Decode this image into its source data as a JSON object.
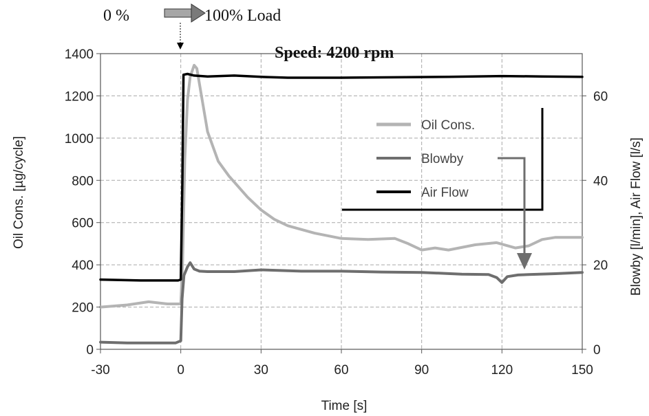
{
  "chart_data": {
    "type": "line",
    "annotations": {
      "load_start": "0 %",
      "load_end": "100% Load",
      "speed": "Speed: 4200 rpm"
    },
    "xlabel": "Time [s]",
    "ylabel_left": "Oil Cons. [µg/cycle]",
    "ylabel_right": "Blowby [l/min], Air Flow [l/s]",
    "xlim": [
      -30,
      150
    ],
    "ylim_left": [
      0,
      1400
    ],
    "ylim_right": [
      0,
      70
    ],
    "x_ticks": [
      "-30",
      "0",
      "30",
      "60",
      "90",
      "120",
      "150"
    ],
    "y_left_ticks": [
      "0",
      "200",
      "400",
      "600",
      "800",
      "1000",
      "1200",
      "1400"
    ],
    "y_right_ticks": [
      "0",
      "20",
      "40",
      "60"
    ],
    "grid": true,
    "legend_position": "upper-right",
    "series": [
      {
        "name": "Oil Cons.",
        "axis": "left",
        "color": "#b4b4b4",
        "x": [
          -30,
          -20,
          -12,
          -5,
          0,
          0.7,
          1.5,
          2.5,
          3.5,
          5,
          6,
          8,
          10,
          14,
          18,
          25,
          30,
          35,
          40,
          50,
          60,
          70,
          80,
          85,
          90,
          95,
          100,
          110,
          118,
          125,
          130,
          135,
          140,
          145,
          150
        ],
        "y": [
          200,
          210,
          225,
          215,
          215,
          420,
          900,
          1180,
          1290,
          1345,
          1330,
          1180,
          1030,
          890,
          820,
          720,
          660,
          615,
          585,
          550,
          525,
          520,
          525,
          500,
          470,
          480,
          470,
          495,
          505,
          480,
          490,
          520,
          530,
          530,
          530
        ]
      },
      {
        "name": "Blowby",
        "axis": "right",
        "color": "#6e6e6e",
        "x": [
          -30,
          -20,
          -10,
          -2,
          0,
          0.5,
          1.2,
          2.5,
          3.5,
          5,
          7,
          10,
          20,
          30,
          45,
          60,
          75,
          90,
          105,
          115,
          118,
          120,
          122,
          126,
          130,
          140,
          150
        ],
        "y": [
          1.7,
          1.5,
          1.5,
          1.5,
          2,
          12,
          17.5,
          19.5,
          20.5,
          19,
          18.5,
          18.4,
          18.4,
          18.8,
          18.5,
          18.5,
          18.3,
          18.2,
          17.8,
          17.7,
          17,
          15.8,
          17.2,
          17.6,
          17.7,
          17.9,
          18.2
        ]
      },
      {
        "name": "Air Flow",
        "axis": "right",
        "color": "#000000",
        "x": [
          -30,
          -15,
          -1,
          0,
          0.6,
          1,
          2.5,
          5,
          10,
          20,
          30,
          40,
          60,
          80,
          100,
          120,
          135,
          150
        ],
        "y": [
          16.5,
          16.3,
          16.3,
          16.5,
          40,
          65,
          65.2,
          64.8,
          64.6,
          64.8,
          64.5,
          64.3,
          64.3,
          64.4,
          64.5,
          64.7,
          64.6,
          64.5
        ]
      }
    ]
  }
}
